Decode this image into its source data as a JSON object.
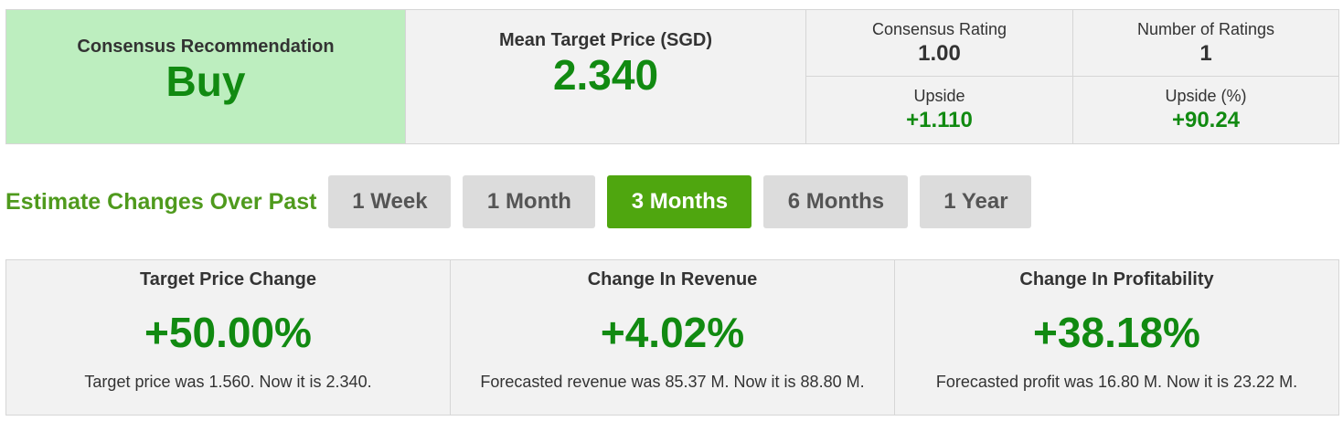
{
  "summary": {
    "recommendation_label": "Consensus Recommendation",
    "recommendation_value": "Buy",
    "target_label": "Mean Target Price (SGD)",
    "target_value": "2.340",
    "stats": [
      {
        "label": "Consensus Rating",
        "value": "1.00"
      },
      {
        "label": "Number of Ratings",
        "value": "1"
      },
      {
        "label": "Upside",
        "value": "+1.110"
      },
      {
        "label": "Upside (%)",
        "value": "+90.24"
      }
    ]
  },
  "estimates": {
    "title": "Estimate Changes Over Past",
    "periods": [
      "1 Week",
      "1 Month",
      "3 Months",
      "6 Months",
      "1 Year"
    ],
    "active_period": "3 Months"
  },
  "changes": [
    {
      "title": "Target Price Change",
      "value": "+50.00%",
      "note": "Target price was 1.560. Now it is 2.340."
    },
    {
      "title": "Change In Revenue",
      "value": "+4.02%",
      "note": "Forecasted revenue was 85.37 M. Now it is 88.80 M."
    },
    {
      "title": "Change In Profitability",
      "value": "+38.18%",
      "note": "Forecasted profit was 16.80 M. Now it is 23.22 M."
    }
  ],
  "colors": {
    "positive_green": "#118a11",
    "buy_background": "#bdeebf",
    "active_button": "#4fa60f",
    "title_green": "#4f9a1d"
  }
}
